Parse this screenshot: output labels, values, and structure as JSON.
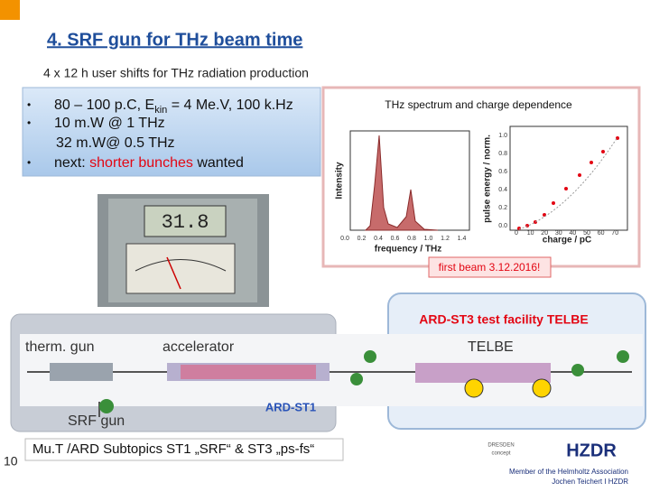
{
  "header": {
    "title": "4. SRF gun for THz beam time",
    "subtitle": "4 x 12 h user shifts for THz radiation production"
  },
  "bullets": [
    {
      "parts": [
        "80 – 100 p.C, E",
        "kin",
        " = 4 Me.V, 100 k.Hz"
      ]
    },
    {
      "parts": [
        "10 m.W @ 1 THz"
      ]
    },
    {
      "parts": [
        "32 m.W@ 0.5 THz"
      ]
    },
    {
      "parts": [
        "next: ",
        "shorter bunches",
        " wanted"
      ]
    }
  ],
  "spectrum_panel": {
    "title": "THz spectrum and charge dependence",
    "left_plot": {
      "ylabel": "Intensity",
      "xlabel": "frequency / THz",
      "xticks": [
        "0.0",
        "0.2",
        "0.4",
        "0.6",
        "0.8",
        "1.0",
        "1.2",
        "1.4"
      ]
    },
    "right_plot": {
      "ylabel": "pulse energy / norm.",
      "xlabel": "charge / pC",
      "xticks": [
        "0",
        "10",
        "20",
        "30",
        "40",
        "50",
        "60",
        "70"
      ],
      "yticks": [
        "0.0",
        "0.2",
        "0.4",
        "0.6",
        "0.8",
        "1.0"
      ]
    },
    "caption": "first beam 3.12.2016!"
  },
  "facility": {
    "title": "ARD-ST3 test facility TELBE",
    "labels": {
      "therm_gun": "therm. gun",
      "accelerator": "accelerator",
      "telbe": "TELBE",
      "srf_gun": "SRF gun",
      "ard_st1": "ARD-ST1"
    }
  },
  "footer": {
    "page": "10",
    "text": "Mu.T /ARD Subtopics ST1 „SRF“ & ST3 „ps-fs“",
    "dresden": "DRESDEN",
    "concept": "concept",
    "logo": "HZDR",
    "tagline": "Member of the Helmholtz Association",
    "author": "Jochen Teichert I HZDR"
  }
}
